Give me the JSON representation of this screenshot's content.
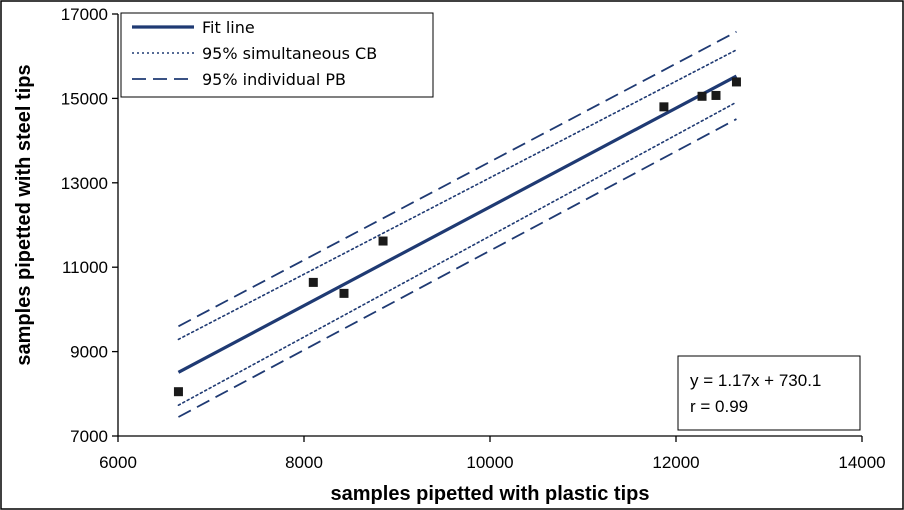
{
  "chart_data": {
    "type": "line",
    "xlabel": "samples pipetted with plastic tips",
    "ylabel": "samples pipetted  with steel tips",
    "xlim": [
      6000,
      14000
    ],
    "ylim": [
      7000,
      17000
    ],
    "xticks": [
      6000,
      8000,
      10000,
      12000,
      14000
    ],
    "yticks": [
      7000,
      9000,
      11000,
      13000,
      15000,
      17000
    ],
    "grid": false,
    "legend_position": "top-left",
    "colors": {
      "line": "#1f3a73",
      "points": "#1a1a1a"
    },
    "points": {
      "x": [
        6650,
        8100,
        8430,
        8850,
        11870,
        12280,
        12430,
        12650
      ],
      "y": [
        8050,
        10640,
        10380,
        11620,
        14800,
        15050,
        15070,
        15390
      ]
    },
    "series": [
      {
        "name": "Fit line",
        "style": "solid",
        "x": [
          6650,
          12650
        ],
        "y": [
          8510,
          15530
        ]
      },
      {
        "name": "95% simultaneous CB",
        "style": "dotted",
        "x": [
          6650,
          12650
        ],
        "y": [
          9290,
          16150
        ]
      },
      {
        "name": "95% simultaneous CB",
        "style": "dotted",
        "x": [
          6650,
          12650
        ],
        "y": [
          7730,
          14910
        ],
        "legend": false
      },
      {
        "name": "95% individual PB",
        "style": "dashed",
        "x": [
          6650,
          12650
        ],
        "y": [
          9600,
          16580
        ]
      },
      {
        "name": "95% individual PB",
        "style": "dashed",
        "x": [
          6650,
          12650
        ],
        "y": [
          7450,
          14510
        ],
        "legend": false
      }
    ],
    "legend": [
      {
        "label": "Fit line",
        "style": "solid"
      },
      {
        "label": "95% simultaneous CB",
        "style": "dotted"
      },
      {
        "label": "95% individual PB",
        "style": "dashed"
      }
    ],
    "annotation": {
      "lines": [
        "y = 1.17x + 730.1",
        "r = 0.99"
      ]
    }
  }
}
